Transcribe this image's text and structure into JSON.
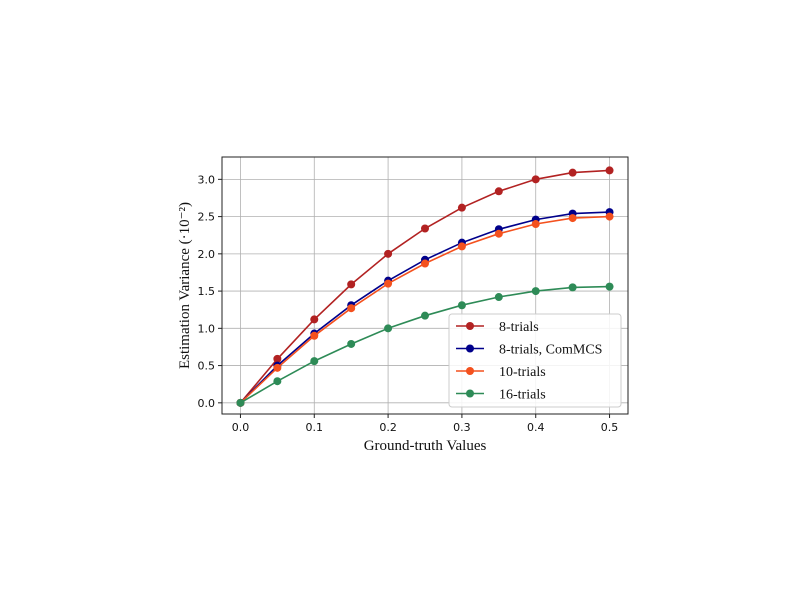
{
  "chart_data": {
    "type": "line",
    "xlabel": "Ground-truth Values",
    "ylabel": "Estimation Variance (·10⁻²)",
    "xlim": [
      -0.025,
      0.525
    ],
    "ylim": [
      -0.15,
      3.3
    ],
    "x": [
      0.0,
      0.05,
      0.1,
      0.15,
      0.2,
      0.25,
      0.3,
      0.35,
      0.4,
      0.45,
      0.5
    ],
    "xticks": [
      "0.0",
      "0.1",
      "0.2",
      "0.3",
      "0.4",
      "0.5"
    ],
    "xtick_values": [
      0.0,
      0.1,
      0.2,
      0.3,
      0.4,
      0.5
    ],
    "yticks": [
      "0.0",
      "0.5",
      "1.0",
      "1.5",
      "2.0",
      "2.5",
      "3.0"
    ],
    "ytick_values": [
      0.0,
      0.5,
      1.0,
      1.5,
      2.0,
      2.5,
      3.0
    ],
    "grid": true,
    "legend_position": "lower-right",
    "series": [
      {
        "name": "8-trials",
        "color": "#b22222",
        "values": [
          0.0,
          0.59,
          1.12,
          1.59,
          2.0,
          2.34,
          2.62,
          2.84,
          3.0,
          3.09,
          3.12
        ]
      },
      {
        "name": "8-trials, ComMCS",
        "color": "#00008b",
        "values": [
          0.0,
          0.5,
          0.93,
          1.31,
          1.64,
          1.92,
          2.15,
          2.33,
          2.46,
          2.54,
          2.56
        ]
      },
      {
        "name": "10-trials",
        "color": "#f4511e",
        "values": [
          0.0,
          0.47,
          0.9,
          1.27,
          1.6,
          1.87,
          2.1,
          2.27,
          2.4,
          2.48,
          2.5
        ]
      },
      {
        "name": "16-trials",
        "color": "#2e8b57",
        "values": [
          0.0,
          0.29,
          0.56,
          0.79,
          1.0,
          1.17,
          1.31,
          1.42,
          1.5,
          1.55,
          1.56
        ]
      }
    ]
  }
}
